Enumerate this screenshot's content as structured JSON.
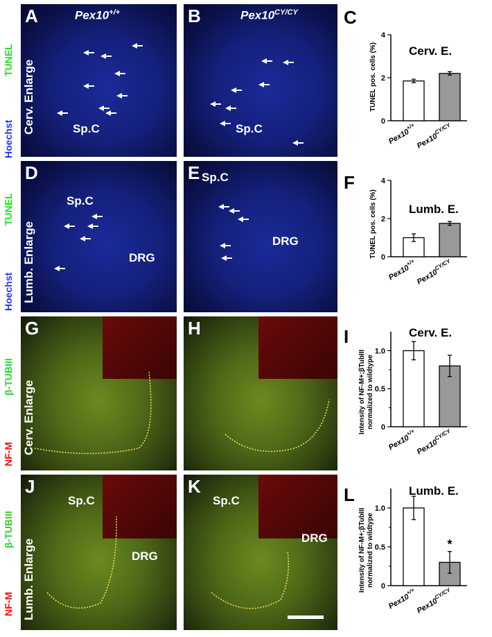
{
  "panels": {
    "A": {
      "letter": "A",
      "genotype_base": "Pex10",
      "genotype_sup": "+/+",
      "region": "Cerv. Enlarge",
      "label1": "Sp.C"
    },
    "B": {
      "letter": "B",
      "genotype_base": "Pex10",
      "genotype_sup": "CY/CY",
      "label1": "Sp.C"
    },
    "D": {
      "letter": "D",
      "region": "Lumb. Enlarge",
      "label1": "Sp.C",
      "label2": "DRG"
    },
    "E": {
      "letter": "E",
      "label1": "Sp.C",
      "label2": "DRG"
    },
    "G": {
      "letter": "G",
      "region": "Cerv. Enlarge"
    },
    "H": {
      "letter": "H"
    },
    "J": {
      "letter": "J",
      "region": "Lumb. Enlarge",
      "label1": "Sp.C",
      "label2": "DRG"
    },
    "K": {
      "letter": "K",
      "label1": "Sp.C",
      "label2": "DRG"
    }
  },
  "stains": {
    "row1": {
      "green": "TUNEL",
      "blue": "Hoechst"
    },
    "row2": {
      "green": "TUNEL",
      "blue": "Hoechst"
    },
    "row3": {
      "red": "NF-M",
      "green": "β-TUBIII"
    },
    "row4": {
      "red": "NF-M",
      "green": "β-TUBIII"
    }
  },
  "colors": {
    "tunel_green": "#22dd22",
    "hoechst_blue": "#2233ee",
    "nfm_red": "#ee1111",
    "tub_green": "#33cc33",
    "bar_wt": "#ffffff",
    "bar_mut": "#999999"
  },
  "chart_data": [
    {
      "letter": "C",
      "type": "bar",
      "title": "Cerv. E.",
      "ylabel": "TUNEL pos. cells (%)",
      "categories": [
        {
          "base": "Pex10",
          "sup": "+/+"
        },
        {
          "base": "Pex10",
          "sup": "CY/CY"
        }
      ],
      "values": [
        1.85,
        2.2
      ],
      "errors": [
        0.08,
        0.08
      ],
      "ylim": [
        0,
        4
      ],
      "yticks": [
        "0",
        "2",
        "4"
      ],
      "tickvals": [
        0,
        2,
        4
      ],
      "significance": [
        "",
        ""
      ]
    },
    {
      "letter": "F",
      "type": "bar",
      "title": "Lumb. E.",
      "ylabel": "TUNEL pos. cells (%)",
      "categories": [
        {
          "base": "Pex10",
          "sup": "+/+"
        },
        {
          "base": "Pex10",
          "sup": "CY/CY"
        }
      ],
      "values": [
        1.0,
        1.75
      ],
      "errors": [
        0.2,
        0.1
      ],
      "ylim": [
        0,
        4
      ],
      "yticks": [
        "0",
        "2",
        "4"
      ],
      "tickvals": [
        0,
        2,
        4
      ],
      "significance": [
        "",
        ""
      ]
    },
    {
      "letter": "I",
      "type": "bar",
      "title": "Cerv. E.",
      "ylabel_lines": [
        "Intensity of NF-M+;βTubIII",
        "normalized to wildtype"
      ],
      "categories": [
        {
          "base": "Pex10",
          "sup": "+/+"
        },
        {
          "base": "Pex10",
          "sup": "CY/CY"
        }
      ],
      "values": [
        1.0,
        0.8
      ],
      "errors": [
        0.12,
        0.14
      ],
      "ylim": [
        0,
        1.25
      ],
      "yticks": [
        "0",
        "0.5",
        "1.0"
      ],
      "tickvals": [
        0,
        0.5,
        1.0
      ],
      "minor": [
        0.25,
        0.75
      ],
      "significance": [
        "",
        ""
      ]
    },
    {
      "letter": "L",
      "type": "bar",
      "title": "Lumb. E.",
      "ylabel_lines": [
        "Intensity of NF-M+;βTubIII",
        "normalized to wildtype"
      ],
      "categories": [
        {
          "base": "Pex10",
          "sup": "+/+"
        },
        {
          "base": "Pex10",
          "sup": "CY/CY"
        }
      ],
      "values": [
        1.0,
        0.3
      ],
      "errors": [
        0.15,
        0.14
      ],
      "ylim": [
        0,
        1.25
      ],
      "yticks": [
        "0",
        "0.5",
        "1.0"
      ],
      "tickvals": [
        0,
        0.5,
        1.0
      ],
      "minor": [
        0.25,
        0.75
      ],
      "significance": [
        "",
        "*"
      ]
    }
  ]
}
